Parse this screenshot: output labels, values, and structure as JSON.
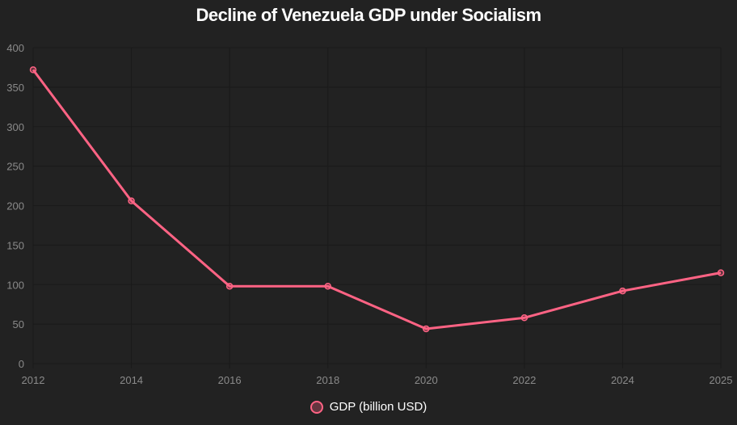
{
  "chart_data": {
    "type": "line",
    "title": "Decline of Venezuela GDP under Socialism",
    "categories": [
      "2012",
      "2014",
      "2016",
      "2018",
      "2020",
      "2022",
      "2024",
      "2025"
    ],
    "series": [
      {
        "name": "GDP (billion USD)",
        "values": [
          372,
          206,
          98,
          98,
          44,
          58,
          92,
          115
        ],
        "color": "#ff6384"
      }
    ],
    "ylim": [
      0,
      400
    ],
    "yticks": [
      0,
      50,
      100,
      150,
      200,
      250,
      300,
      350,
      400
    ],
    "grid": true,
    "legend": "bottom",
    "xlabel": "",
    "ylabel": ""
  }
}
